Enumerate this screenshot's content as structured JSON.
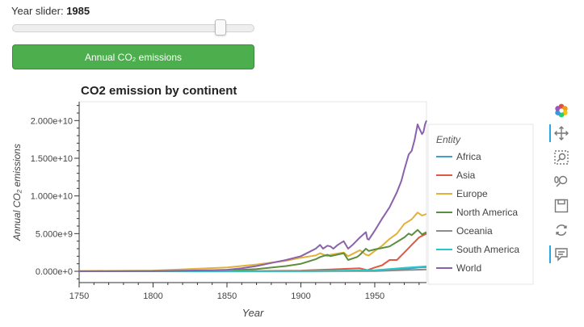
{
  "slider": {
    "title_label": "Year slider:",
    "value": "1985",
    "min": 1750,
    "max": 2018,
    "current": 1985
  },
  "button": {
    "label": "Annual CO₂ emissions",
    "color": "#4cae4c"
  },
  "toolbar": {
    "tools": [
      "bokeh-logo-icon",
      "pan-icon",
      "box-zoom-icon",
      "wheel-zoom-icon",
      "save-icon",
      "reset-icon",
      "hover-icon"
    ]
  },
  "chart_data": {
    "type": "line",
    "title": "CO2 emission by continent",
    "xlabel": "Year",
    "ylabel": "Annual CO₂ emissions",
    "xlim": [
      1750,
      1985
    ],
    "ylim": [
      -1500000000,
      22500000000
    ],
    "x_ticks": [
      "1750",
      "1800",
      "1850",
      "1900",
      "1950"
    ],
    "y_ticks": [
      "0.000e+0",
      "5.000e+9",
      "1.000e+10",
      "1.500e+10",
      "2.000e+10"
    ],
    "legend": {
      "title": "Entity",
      "placement": "right"
    },
    "series": [
      {
        "name": "Africa",
        "color": "#41a0cb",
        "x": [
          1750,
          1900,
          1950,
          1960,
          1970,
          1980,
          1985
        ],
        "y": [
          0,
          20000000,
          100000000,
          150000000,
          300000000,
          500000000,
          550000000
        ]
      },
      {
        "name": "Asia",
        "color": "#e05a43",
        "x": [
          1750,
          1850,
          1900,
          1920,
          1940,
          1945,
          1950,
          1955,
          1960,
          1965,
          1970,
          1975,
          1980,
          1985
        ],
        "y": [
          0,
          10000000,
          100000000,
          250000000,
          400000000,
          150000000,
          500000000,
          800000000,
          1500000000,
          1500000000,
          2500000000,
          3500000000,
          4500000000,
          5000000000
        ]
      },
      {
        "name": "Europe",
        "color": "#e0b23a",
        "x": [
          1750,
          1800,
          1850,
          1870,
          1890,
          1900,
          1910,
          1913,
          1918,
          1920,
          1929,
          1932,
          1938,
          1940,
          1944,
          1946,
          1950,
          1955,
          1960,
          1965,
          1970,
          1975,
          1979,
          1982,
          1985
        ],
        "y": [
          40000000,
          100000000,
          500000000,
          900000000,
          1400000000,
          1800000000,
          2100000000,
          2400000000,
          2000000000,
          2200000000,
          2500000000,
          2000000000,
          2600000000,
          2800000000,
          2200000000,
          2100000000,
          2700000000,
          3400000000,
          4300000000,
          5000000000,
          6300000000,
          6900000000,
          7800000000,
          7400000000,
          7600000000
        ]
      },
      {
        "name": "North America",
        "color": "#5c8e3f",
        "x": [
          1750,
          1800,
          1850,
          1870,
          1890,
          1900,
          1910,
          1913,
          1918,
          1920,
          1929,
          1932,
          1938,
          1940,
          1944,
          1946,
          1950,
          1955,
          1960,
          1965,
          1970,
          1973,
          1975,
          1979,
          1982,
          1985
        ],
        "y": [
          0,
          10000000,
          100000000,
          300000000,
          700000000,
          1000000000,
          1600000000,
          1900000000,
          2200000000,
          2000000000,
          2400000000,
          1500000000,
          1900000000,
          2200000000,
          3000000000,
          2700000000,
          2900000000,
          3100000000,
          3300000000,
          3900000000,
          4500000000,
          5000000000,
          4800000000,
          5500000000,
          4900000000,
          5200000000
        ]
      },
      {
        "name": "Oceania",
        "color": "#8c8c8c",
        "x": [
          1750,
          1900,
          1950,
          1985
        ],
        "y": [
          0,
          10000000,
          30000000,
          250000000
        ]
      },
      {
        "name": "South America",
        "color": "#26c7c7",
        "x": [
          1750,
          1900,
          1950,
          1960,
          1970,
          1985
        ],
        "y": [
          0,
          20000000,
          150000000,
          300000000,
          450000000,
          650000000
        ]
      },
      {
        "name": "World",
        "color": "#8a62ac",
        "x": [
          1750,
          1800,
          1820,
          1840,
          1850,
          1860,
          1870,
          1880,
          1890,
          1900,
          1905,
          1910,
          1913,
          1915,
          1918,
          1920,
          1922,
          1925,
          1929,
          1932,
          1935,
          1938,
          1940,
          1944,
          1945,
          1946,
          1950,
          1955,
          1960,
          1965,
          1968,
          1970,
          1973,
          1975,
          1977,
          1979,
          1980,
          1982,
          1983,
          1984,
          1985
        ],
        "y": [
          10000000,
          30000000,
          70000000,
          150000000,
          200000000,
          400000000,
          700000000,
          1100000000,
          1500000000,
          2000000000,
          2500000000,
          3000000000,
          3500000000,
          3000000000,
          3400000000,
          3300000000,
          3000000000,
          3500000000,
          4000000000,
          3000000000,
          3500000000,
          4100000000,
          4500000000,
          5200000000,
          4300000000,
          4200000000,
          5400000000,
          7000000000,
          8500000000,
          10500000000,
          12000000000,
          13500000000,
          15500000000,
          16000000000,
          17500000000,
          19500000000,
          19000000000,
          18200000000,
          18500000000,
          19500000000,
          20000000000
        ]
      }
    ]
  }
}
